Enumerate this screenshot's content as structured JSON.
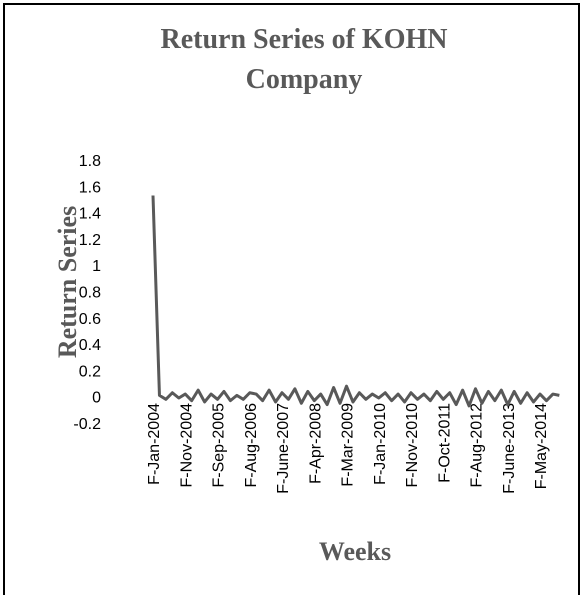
{
  "chart_data": {
    "type": "line",
    "title": "Return Series of KOHN Company",
    "title_lines": [
      "Return Series of KOHN",
      "Company"
    ],
    "x_label": "Weeks",
    "y_label": "Return Series",
    "categories": [
      "F-Jan-2004",
      null,
      null,
      null,
      null,
      "F-Nov-2004",
      null,
      null,
      null,
      null,
      "F-Sep-2005",
      null,
      null,
      null,
      null,
      "F-Aug-2006",
      null,
      null,
      null,
      null,
      "F-June-2007",
      null,
      null,
      null,
      null,
      "F-Apr-2008",
      null,
      null,
      null,
      null,
      "F-Mar-2009",
      null,
      null,
      null,
      null,
      "F-Jan-2010",
      null,
      null,
      null,
      null,
      "F-Nov-2010",
      null,
      null,
      null,
      null,
      "F-Oct-2011",
      null,
      null,
      null,
      null,
      "F-Aug-2012",
      null,
      null,
      null,
      null,
      "F-June-2013",
      null,
      null,
      null,
      null,
      "F-May-2014",
      null,
      null,
      null
    ],
    "series": [
      {
        "name": "Return Series",
        "color": "#595959",
        "values": [
          1.53,
          0.01,
          -0.02,
          0.03,
          -0.01,
          0.02,
          -0.03,
          0.05,
          -0.04,
          0.02,
          -0.02,
          0.04,
          -0.03,
          0.01,
          -0.02,
          0.03,
          0.02,
          -0.03,
          0.05,
          -0.04,
          0.03,
          -0.02,
          0.06,
          -0.05,
          0.04,
          -0.03,
          0.02,
          -0.06,
          0.07,
          -0.05,
          0.08,
          -0.04,
          0.03,
          -0.02,
          0.02,
          -0.01,
          0.03,
          -0.03,
          0.02,
          -0.04,
          0.03,
          -0.02,
          0.02,
          -0.03,
          0.04,
          -0.02,
          0.03,
          -0.06,
          0.05,
          -0.07,
          0.06,
          -0.05,
          0.04,
          -0.03,
          0.05,
          -0.06,
          0.04,
          -0.05,
          0.03,
          -0.04,
          0.02,
          -0.03,
          0.02,
          0.01
        ]
      }
    ],
    "ylim": [
      -0.2,
      1.8
    ],
    "yticks": [
      -0.2,
      0,
      0.2,
      0.4,
      0.6,
      0.8,
      1,
      1.2,
      1.4,
      1.6,
      1.8
    ],
    "grid": false
  }
}
